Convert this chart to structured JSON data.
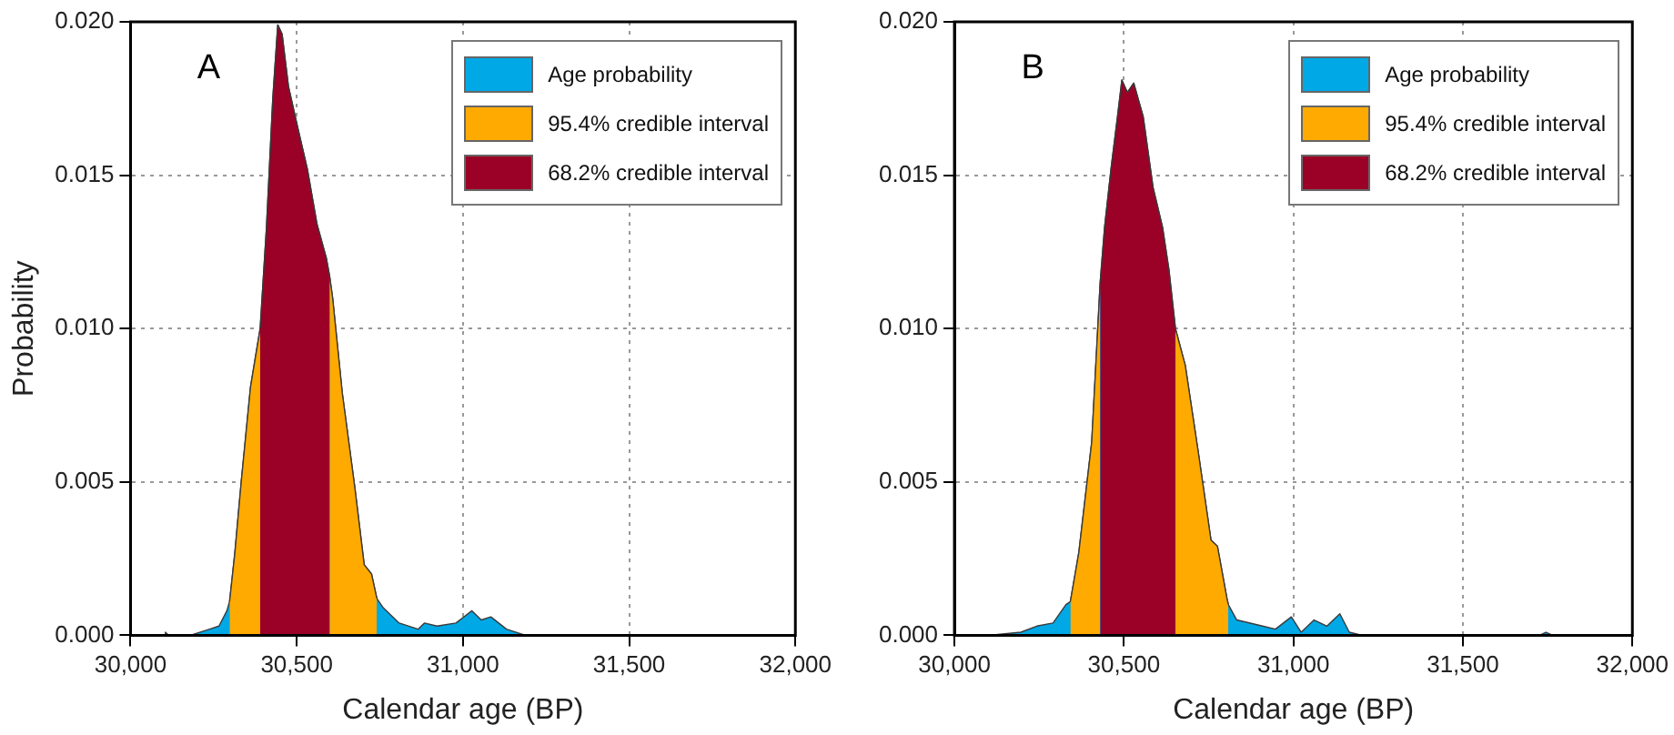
{
  "chart_data": [
    {
      "type": "area",
      "annotations": [
        "A"
      ],
      "xlabel": "Calendar age (BP)",
      "ylabel": "Probability",
      "xlim": [
        30000,
        32000
      ],
      "ylim": [
        0,
        0.02
      ],
      "xticks": [
        {
          "value": 30000,
          "label": "30,000"
        },
        {
          "value": 30500,
          "label": "30,500"
        },
        {
          "value": 31000,
          "label": "31,000"
        },
        {
          "value": 31500,
          "label": "31,500"
        },
        {
          "value": 32000,
          "label": "32,000"
        }
      ],
      "yticks": [
        {
          "value": 0,
          "label": "0.000"
        },
        {
          "value": 0.005,
          "label": "0.005"
        },
        {
          "value": 0.01,
          "label": "0.010"
        },
        {
          "value": 0.015,
          "label": "0.015"
        },
        {
          "value": 0.02,
          "label": "0.020"
        }
      ],
      "grid": true,
      "legend": "top right",
      "marker": "none",
      "line_style": "solid",
      "series": [
        {
          "name": "Age probability",
          "color": "#00a8e6",
          "x": [
            30000,
            30100,
            30105,
            30115,
            30180,
            30238,
            30266,
            30290,
            30298,
            30314,
            30333,
            30361,
            30390,
            30409,
            30428,
            30443,
            30456,
            30475,
            30504,
            30532,
            30561,
            30589,
            30599,
            30608,
            30637,
            30675,
            30703,
            30725,
            30741,
            30760,
            30808,
            30865,
            30884,
            30922,
            30979,
            31027,
            31055,
            31084,
            31131,
            31188
          ],
          "values": [
            0,
            0,
            0.0001,
            0,
            0,
            0.0002,
            0.0003,
            0.0008,
            0.0011,
            0.0027,
            0.005,
            0.0081,
            0.01,
            0.0133,
            0.0175,
            0.0199,
            0.0196,
            0.0179,
            0.0165,
            0.0152,
            0.0134,
            0.0123,
            0.0117,
            0.011,
            0.0079,
            0.0048,
            0.0023,
            0.002,
            0.0012,
            0.0009,
            0.0004,
            0.0002,
            0.0004,
            0.0003,
            0.0004,
            0.0008,
            0.0005,
            0.0006,
            0.0002,
            0
          ]
        },
        {
          "name": "95.4% credible interval",
          "color": "#ffaa00",
          "x": [
            30298,
            30314,
            30333,
            30361,
            30390,
            30409,
            30428,
            30443,
            30456,
            30475,
            30504,
            30532,
            30561,
            30589,
            30599,
            30608,
            30637,
            30675,
            30703,
            30725,
            30741
          ],
          "values": [
            0.0011,
            0.0027,
            0.005,
            0.0081,
            0.01,
            null,
            null,
            null,
            null,
            null,
            null,
            null,
            null,
            null,
            0.0117,
            0.011,
            0.0079,
            0.0048,
            0.0023,
            0.002,
            0.0012
          ]
        },
        {
          "name": "68.2% credible interval",
          "color": "#9b0026",
          "x": [
            30390,
            30409,
            30428,
            30443,
            30456,
            30475,
            30504,
            30532,
            30561,
            30589,
            30599
          ],
          "values": [
            0.01,
            0.0133,
            0.0175,
            0.0199,
            0.0196,
            0.0179,
            0.0165,
            0.0152,
            0.0134,
            0.0123,
            0.0117
          ]
        }
      ]
    },
    {
      "type": "area",
      "annotations": [
        "B"
      ],
      "xlabel": "Calendar age (BP)",
      "xlim": [
        30000,
        32000
      ],
      "ylim": [
        0,
        0.02
      ],
      "xticks": [
        {
          "value": 30000,
          "label": "30,000"
        },
        {
          "value": 30500,
          "label": "30,500"
        },
        {
          "value": 31000,
          "label": "31,000"
        },
        {
          "value": 31500,
          "label": "31,500"
        },
        {
          "value": 32000,
          "label": "32,000"
        }
      ],
      "yticks": [
        {
          "value": 0,
          "label": "0.000"
        },
        {
          "value": 0.005,
          "label": "0.005"
        },
        {
          "value": 0.01,
          "label": "0.010"
        },
        {
          "value": 0.015,
          "label": "0.015"
        },
        {
          "value": 0.02,
          "label": "0.020"
        }
      ],
      "grid": true,
      "legend": "top right",
      "marker": "none",
      "line_style": "solid",
      "series": [
        {
          "name": "Age probability",
          "color": "#00a8e6",
          "x": [
            30000,
            30101,
            30196,
            30243,
            30291,
            30329,
            30342,
            30367,
            30405,
            30430,
            30443,
            30462,
            30481,
            30494,
            30510,
            30529,
            30557,
            30586,
            30614,
            30633,
            30652,
            30681,
            30719,
            30757,
            30776,
            30804,
            30808,
            30833,
            30909,
            30947,
            30994,
            31023,
            31061,
            31099,
            31137,
            31165,
            31203,
            31726,
            31745,
            31765,
            32000
          ],
          "values": [
            0,
            0,
            0.0001,
            0.0003,
            0.0004,
            0.001,
            0.0011,
            0.0027,
            0.0063,
            0.0115,
            0.0133,
            0.0152,
            0.0169,
            0.0181,
            0.0177,
            0.018,
            0.0169,
            0.0146,
            0.0133,
            0.0119,
            0.01,
            0.0088,
            0.006,
            0.0031,
            0.0029,
            0.0012,
            0.001,
            0.0005,
            0.0003,
            0.0002,
            0.0006,
            0.0001,
            0.0005,
            0.0003,
            0.0007,
            0.0001,
            0,
            0,
            0.0001,
            0,
            0
          ]
        },
        {
          "name": "95.4% credible interval",
          "color": "#ffaa00",
          "x": [
            30342,
            30367,
            30405,
            30430,
            30443,
            30462,
            30481,
            30494,
            30510,
            30529,
            30557,
            30586,
            30614,
            30633,
            30652,
            30681,
            30719,
            30757,
            30776,
            30804,
            30808
          ],
          "values": [
            0.0011,
            0.0027,
            0.0063,
            0.0115,
            null,
            null,
            null,
            null,
            null,
            null,
            null,
            null,
            null,
            null,
            0.01,
            0.0088,
            0.006,
            0.0031,
            0.0029,
            0.0012,
            0.001
          ]
        },
        {
          "name": "68.2% credible interval",
          "color": "#9b0026",
          "x": [
            30430,
            30443,
            30462,
            30481,
            30494,
            30510,
            30529,
            30557,
            30586,
            30614,
            30633,
            30652
          ],
          "values": [
            0.0115,
            0.0133,
            0.0152,
            0.0169,
            0.0181,
            0.0177,
            0.018,
            0.0169,
            0.0146,
            0.0133,
            0.0119,
            0.01
          ]
        }
      ]
    }
  ]
}
